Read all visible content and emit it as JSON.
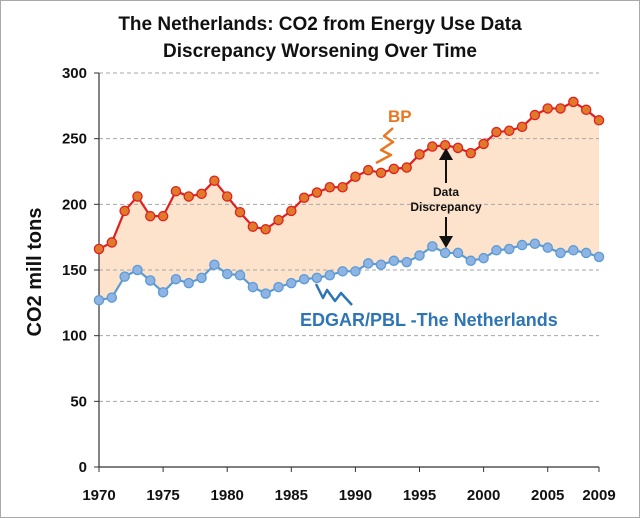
{
  "chart_data": {
    "type": "line",
    "title": [
      "The Netherlands: CO2 from Energy Use Data",
      "Discrepancy Worsening Over Time"
    ],
    "xlabel": "",
    "ylabel": "CO2 mill tons",
    "xlim": [
      1970,
      2009
    ],
    "ylim": [
      0,
      300
    ],
    "yticks": [
      0,
      50,
      100,
      150,
      200,
      250,
      300
    ],
    "xtick_labels": [
      "1970",
      "1975",
      "1980",
      "1985",
      "1990",
      "1995",
      "2000",
      "2005",
      "2009"
    ],
    "grid": "horizontal dashed",
    "x": [
      1970,
      1971,
      1972,
      1973,
      1974,
      1975,
      1976,
      1977,
      1978,
      1979,
      1980,
      1981,
      1982,
      1983,
      1984,
      1985,
      1986,
      1987,
      1988,
      1989,
      1990,
      1991,
      1992,
      1993,
      1994,
      1995,
      1996,
      1997,
      1998,
      1999,
      2000,
      2001,
      2002,
      2003,
      2004,
      2005,
      2006,
      2007,
      2008,
      2009
    ],
    "series": [
      {
        "name": "BP",
        "color": "#e0201e",
        "marker_color": "#e07a2a",
        "label_color": "#e87722",
        "values": [
          166,
          171,
          195,
          206,
          191,
          191,
          210,
          206,
          208,
          218,
          206,
          194,
          183,
          181,
          188,
          195,
          205,
          209,
          213,
          213,
          221,
          226,
          224,
          227,
          228,
          238,
          244,
          245,
          243,
          239,
          246,
          255,
          256,
          259,
          268,
          273,
          273,
          278,
          272,
          264
        ]
      },
      {
        "name": "EDGAR/PBL -The Netherlands",
        "color": "#5b9bd5",
        "marker_color": "#8fb4e3",
        "label_color": "#2e75b6",
        "values": [
          127,
          129,
          145,
          150,
          142,
          133,
          143,
          140,
          144,
          154,
          147,
          146,
          137,
          132,
          137,
          140,
          143,
          144,
          146,
          149,
          149,
          155,
          154,
          157,
          156,
          161,
          168,
          163,
          163,
          157,
          159,
          165,
          166,
          169,
          170,
          167,
          163,
          165,
          163,
          160
        ]
      }
    ],
    "fill_between": {
      "color": "#fde3cc"
    },
    "annotation": {
      "line1": "Data",
      "line2": "Discrepancy"
    }
  }
}
